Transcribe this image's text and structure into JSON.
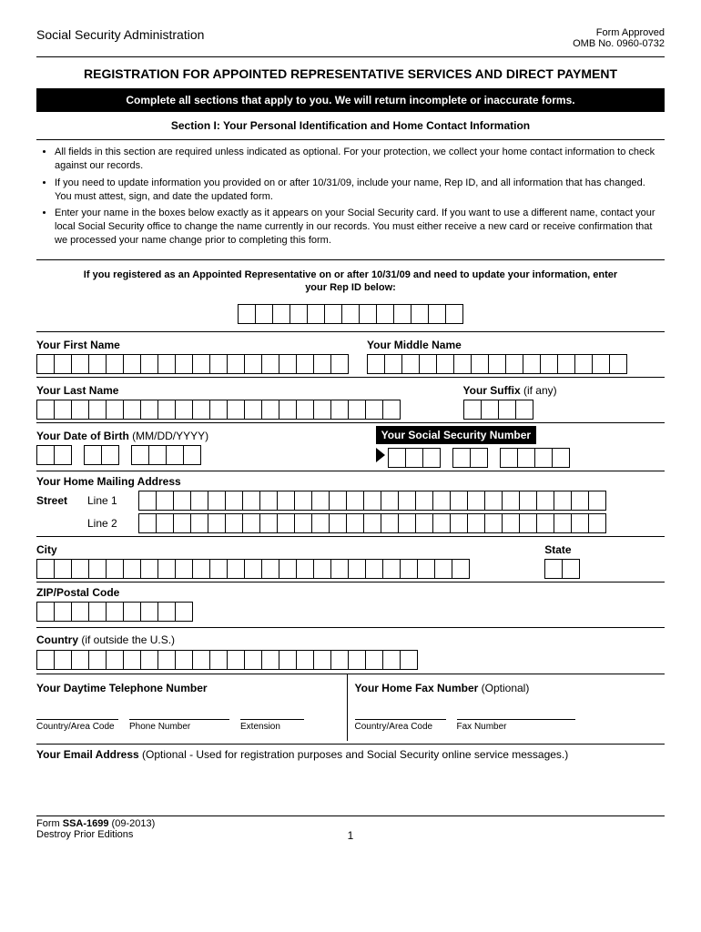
{
  "header": {
    "agency": "Social Security Administration",
    "approved": "Form Approved",
    "omb": "OMB No. 0960-0732"
  },
  "title": "REGISTRATION FOR APPOINTED REPRESENTATIVE SERVICES AND DIRECT PAYMENT",
  "instruction_bar": "Complete all sections that apply to you.  We will return incomplete or inaccurate forms.",
  "section1_title": "Section I:  Your Personal Identification and Home Contact Information",
  "bullets": [
    "All fields in this section are required unless indicated as optional.  For your protection, we collect your home contact information to check against our records.",
    "If you need to update information you provided on or after 10/31/09, include your name, Rep ID, and all information that has changed. You must attest, sign, and date the updated form.",
    "Enter your name in the boxes below exactly as it appears on your Social Security card.  If you want to use a different name, contact your local Social Security office to change the name currently in our records.  You must either receive a new card or receive confirmation that we processed your name change prior to completing this form."
  ],
  "rep_id_text": "If you registered as an Appointed Representative on or after 10/31/09 and need to update your information, enter your Rep ID below:",
  "labels": {
    "first_name": "Your First Name",
    "middle_name": "Your Middle Name",
    "last_name": "Your Last Name",
    "suffix": "Your Suffix",
    "suffix_hint": " (if any)",
    "dob": "Your Date of Birth",
    "dob_hint": " (MM/DD/YYYY)",
    "ssn": "Your Social Security Number",
    "mailing": "Your Home Mailing Address",
    "street": "Street",
    "line1": "Line 1",
    "line2": "Line 2",
    "city": "City",
    "state": "State",
    "zip": "ZIP/Postal Code",
    "country": "Country",
    "country_hint": " (if outside the U.S.)",
    "daytime_phone": "Your Daytime Telephone Number",
    "fax": "Your Home Fax Number",
    "fax_hint": " (Optional)",
    "country_area": "Country/Area Code",
    "phone_number": "Phone Number",
    "extension": "Extension",
    "fax_number": "Fax Number",
    "email": "Your Email Address",
    "email_hint": " (Optional - Used for registration purposes and Social Security online service messages.)"
  },
  "box_counts": {
    "rep_id": 13,
    "first_name": 18,
    "middle_name": 15,
    "last_name": 21,
    "suffix": 4,
    "dob_mm": 2,
    "dob_dd": 2,
    "dob_yyyy": 4,
    "ssn_a": 3,
    "ssn_b": 2,
    "ssn_c": 4,
    "street": 27,
    "city": 25,
    "state": 2,
    "zip": 9,
    "country": 22
  },
  "footer": {
    "form_no": "SSA-1699",
    "form_prefix": "Form ",
    "revision": " (09-2013)",
    "destroy": "Destroy Prior Editions",
    "page": "1"
  }
}
